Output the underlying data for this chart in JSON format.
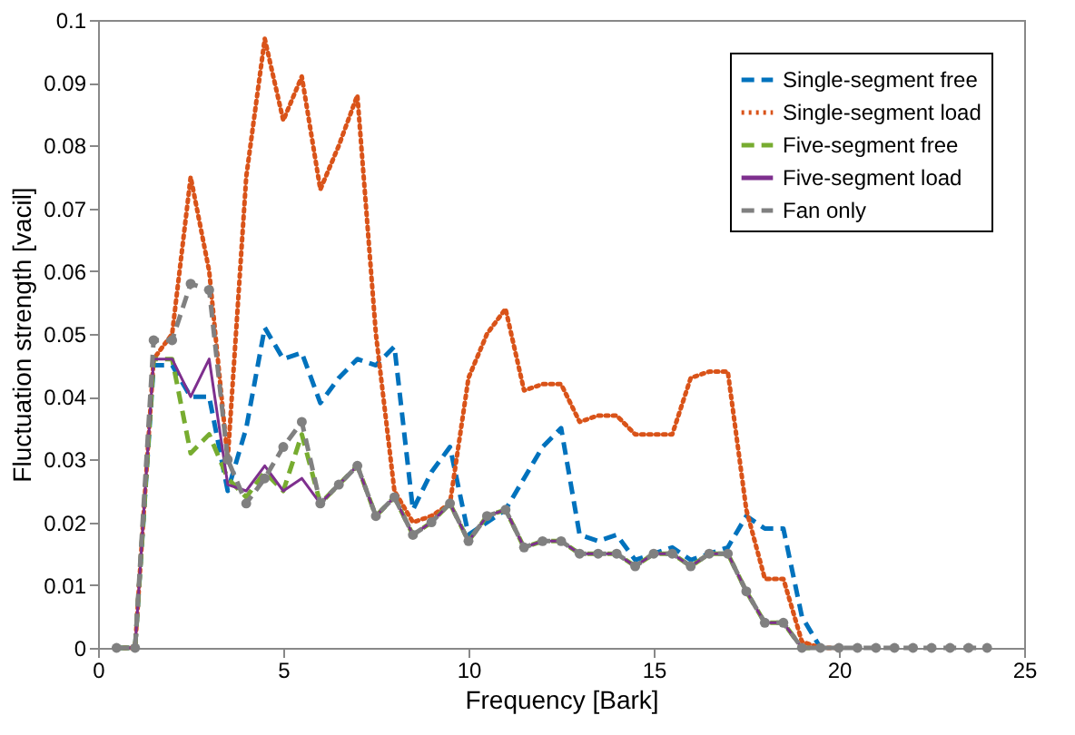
{
  "chart_data": {
    "type": "line",
    "xlabel": "Frequency [Bark]",
    "ylabel": "Fluctuation strength [vacil]",
    "x": [
      0.5,
      1,
      1.5,
      2,
      2.5,
      3,
      3.5,
      4,
      4.5,
      5,
      5.5,
      6,
      6.5,
      7,
      7.5,
      8,
      8.5,
      9,
      9.5,
      10,
      10.5,
      11,
      11.5,
      12,
      12.5,
      13,
      13.5,
      14,
      14.5,
      15,
      15.5,
      16,
      16.5,
      17,
      17.5,
      18,
      18.5,
      19,
      19.5,
      20,
      20.5,
      21,
      21.5,
      22,
      22.5,
      23,
      23.5,
      24
    ],
    "series": [
      {
        "name": "Single-segment free",
        "color": "#0072bd",
        "line_style": "dashed",
        "values": [
          0,
          0,
          0.045,
          0.045,
          0.04,
          0.04,
          0.025,
          0.035,
          0.051,
          0.046,
          0.047,
          0.039,
          0.043,
          0.046,
          0.045,
          0.048,
          0.022,
          0.028,
          0.032,
          0.018,
          0.02,
          0.022,
          0.027,
          0.032,
          0.035,
          0.018,
          0.017,
          0.018,
          0.014,
          0.015,
          0.016,
          0.014,
          0.015,
          0.016,
          0.021,
          0.019,
          0.019,
          0.005,
          0,
          null,
          null,
          null,
          null,
          null,
          null,
          null,
          null,
          null
        ]
      },
      {
        "name": "Single-segment load",
        "color": "#d95319",
        "line_style": "dotted",
        "values": [
          0,
          0,
          0.046,
          0.05,
          0.075,
          0.06,
          0.03,
          0.075,
          0.097,
          0.084,
          0.091,
          0.073,
          0.08,
          0.088,
          0.05,
          0.025,
          0.02,
          0.021,
          0.023,
          0.043,
          0.05,
          0.054,
          0.041,
          0.042,
          0.042,
          0.036,
          0.037,
          0.037,
          0.034,
          0.034,
          0.034,
          0.043,
          0.044,
          0.044,
          0.022,
          0.011,
          0.011,
          0.001,
          0,
          0,
          null,
          null,
          null,
          null,
          null,
          null,
          null,
          null
        ]
      },
      {
        "name": "Five-segment free",
        "color": "#77ac30",
        "line_style": "dashed",
        "values": [
          0,
          0,
          0.046,
          0.046,
          0.031,
          0.034,
          0.027,
          0.024,
          0.028,
          0.025,
          0.034,
          0.023,
          0.026,
          0.029,
          0.021,
          0.024,
          0.018,
          0.02,
          0.023,
          0.017,
          0.021,
          0.022,
          0.016,
          0.017,
          0.017,
          0.015,
          0.015,
          0.015,
          0.013,
          0.015,
          0.015,
          0.013,
          0.015,
          0.015,
          0.009,
          0.004,
          0.004,
          0,
          0,
          null,
          null,
          null,
          null,
          null,
          null,
          null,
          null,
          null
        ]
      },
      {
        "name": "Five-segment load",
        "color": "#7e2f8e",
        "line_style": "solid",
        "values": [
          0,
          0,
          0.046,
          0.046,
          0.04,
          0.046,
          0.026,
          0.025,
          0.029,
          0.025,
          0.027,
          0.023,
          0.026,
          0.029,
          0.021,
          0.024,
          0.018,
          0.02,
          0.023,
          0.017,
          0.021,
          0.022,
          0.016,
          0.017,
          0.017,
          0.015,
          0.015,
          0.015,
          0.013,
          0.015,
          0.015,
          0.013,
          0.015,
          0.015,
          0.009,
          0.004,
          0.004,
          0,
          0,
          null,
          null,
          null,
          null,
          null,
          null,
          null,
          null,
          null
        ]
      },
      {
        "name": "Fan only",
        "color": "#808080",
        "line_style": "dashed",
        "marker": "circle",
        "values": [
          0,
          0,
          0.049,
          0.049,
          0.058,
          0.057,
          0.03,
          0.023,
          0.027,
          0.032,
          0.036,
          0.023,
          0.026,
          0.029,
          0.021,
          0.024,
          0.018,
          0.02,
          0.023,
          0.017,
          0.021,
          0.022,
          0.016,
          0.017,
          0.017,
          0.015,
          0.015,
          0.015,
          0.013,
          0.015,
          0.015,
          0.013,
          0.015,
          0.015,
          0.009,
          0.004,
          0.004,
          0,
          0,
          0,
          0,
          0,
          0,
          0,
          0,
          0,
          0,
          0
        ]
      }
    ],
    "xlim": [
      0,
      25
    ],
    "xticks": [
      0,
      5,
      10,
      15,
      20,
      25
    ],
    "ylim": [
      0,
      0.1
    ],
    "yticks": [
      0,
      0.01,
      0.02,
      0.03,
      0.04,
      0.05,
      0.06,
      0.07,
      0.08,
      0.09,
      0.1
    ],
    "legend": "top right"
  }
}
